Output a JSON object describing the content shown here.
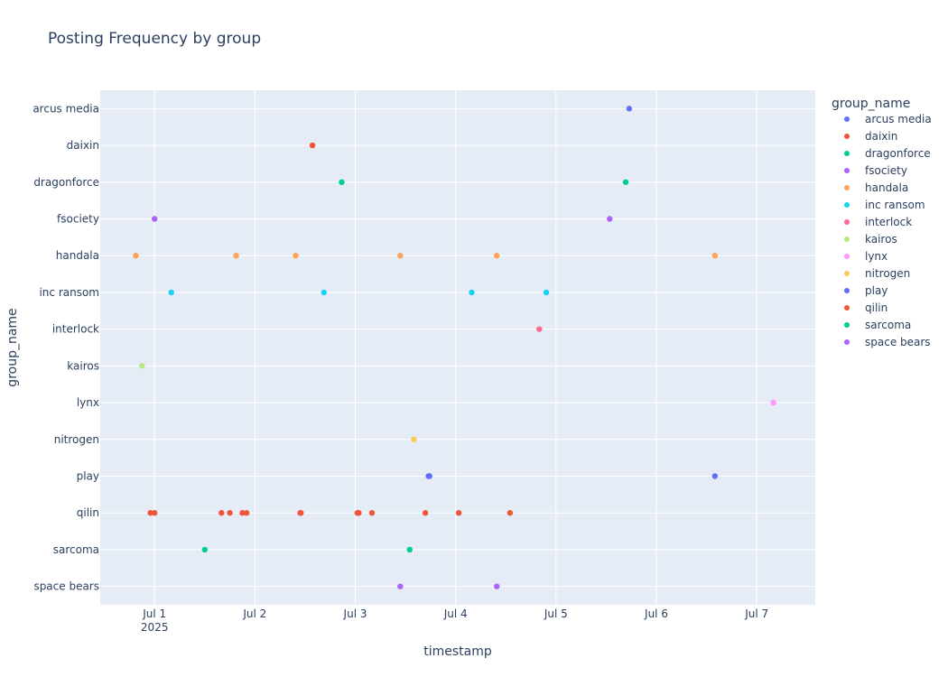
{
  "chart_data": {
    "type": "scatter",
    "title": "Posting Frequency by group",
    "xlabel": "timestamp",
    "ylabel": "group_name",
    "legend_title": "group_name",
    "legend_position": "right",
    "grid": true,
    "xlim": [
      "2025-06-30 11:00",
      "2025-07-07 14:00"
    ],
    "x_ticks": [
      {
        "value": "2025-07-01 00:00",
        "label": "Jul 1",
        "sublabel": "2025"
      },
      {
        "value": "2025-07-02 00:00",
        "label": "Jul 2"
      },
      {
        "value": "2025-07-03 00:00",
        "label": "Jul 3"
      },
      {
        "value": "2025-07-04 00:00",
        "label": "Jul 4"
      },
      {
        "value": "2025-07-05 00:00",
        "label": "Jul 5"
      },
      {
        "value": "2025-07-06 00:00",
        "label": "Jul 6"
      },
      {
        "value": "2025-07-07 00:00",
        "label": "Jul 7"
      }
    ],
    "categories": [
      "arcus media",
      "daixin",
      "dragonforce",
      "fsociety",
      "handala",
      "inc ransom",
      "interlock",
      "kairos",
      "lynx",
      "nitrogen",
      "play",
      "qilin",
      "sarcoma",
      "space bears"
    ],
    "series": [
      {
        "name": "arcus media",
        "color": "#636efa",
        "points": [
          "2025-07-05 17:30"
        ]
      },
      {
        "name": "daixin",
        "color": "#EF553B",
        "points": [
          "2025-07-02 13:45"
        ]
      },
      {
        "name": "dragonforce",
        "color": "#00cc96",
        "points": [
          "2025-07-02 20:45",
          "2025-07-05 16:40"
        ]
      },
      {
        "name": "fsociety",
        "color": "#ab63fa",
        "points": [
          "2025-07-01 00:00",
          "2025-07-05 12:50"
        ]
      },
      {
        "name": "handala",
        "color": "#FFA15A",
        "points": [
          "2025-06-30 19:30",
          "2025-07-01 19:30",
          "2025-07-02 09:45",
          "2025-07-03 10:45",
          "2025-07-04 09:50",
          "2025-07-06 14:00"
        ]
      },
      {
        "name": "inc ransom",
        "color": "#19d3f3",
        "points": [
          "2025-07-01 04:00",
          "2025-07-02 16:30",
          "2025-07-04 03:50",
          "2025-07-04 21:40"
        ]
      },
      {
        "name": "interlock",
        "color": "#FF6692",
        "points": [
          "2025-07-04 20:00"
        ]
      },
      {
        "name": "kairos",
        "color": "#B6E880",
        "points": [
          "2025-06-30 21:00"
        ]
      },
      {
        "name": "lynx",
        "color": "#FF97FF",
        "points": [
          "2025-07-07 04:00"
        ]
      },
      {
        "name": "nitrogen",
        "color": "#FECB52",
        "points": [
          "2025-07-03 14:00"
        ]
      },
      {
        "name": "play",
        "color": "#636efa",
        "points": [
          "2025-07-03 17:30",
          "2025-07-03 17:45",
          "2025-07-06 14:00"
        ]
      },
      {
        "name": "qilin",
        "color": "#EF553B",
        "points": [
          "2025-06-30 23:00",
          "2025-07-01 00:00",
          "2025-07-01 16:00",
          "2025-07-01 18:00",
          "2025-07-01 21:00",
          "2025-07-01 22:00",
          "2025-07-02 10:50",
          "2025-07-02 11:00",
          "2025-07-03 00:30",
          "2025-07-03 00:50",
          "2025-07-03 04:00",
          "2025-07-03 16:45",
          "2025-07-04 00:45",
          "2025-07-04 13:00"
        ]
      },
      {
        "name": "sarcoma",
        "color": "#00cc96",
        "points": [
          "2025-07-01 12:00",
          "2025-07-03 13:00"
        ]
      },
      {
        "name": "space bears",
        "color": "#ab63fa",
        "points": [
          "2025-07-03 10:45",
          "2025-07-04 09:50"
        ]
      }
    ]
  }
}
